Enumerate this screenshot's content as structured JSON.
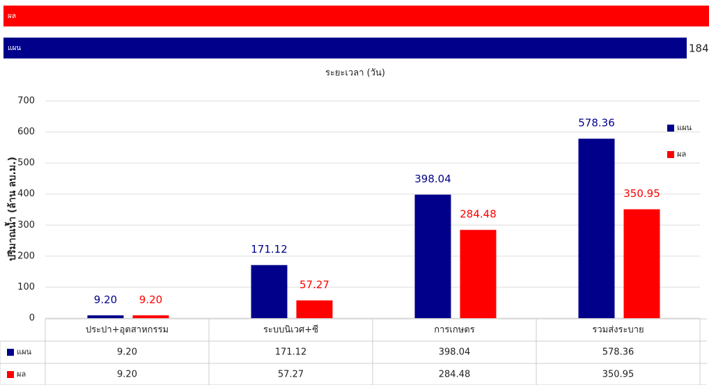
{
  "chart_data": [
    {
      "type": "hbar",
      "xlabel": "ระยะเวลา (วัน)",
      "categories": [
        "ผล",
        "แผน"
      ],
      "values": [
        195,
        184
      ],
      "colors": [
        "#ff0000",
        "#00008b"
      ],
      "xlim": [
        0,
        190
      ]
    },
    {
      "type": "bar",
      "ylabel": "ปริมาณน้ำ (ล้าน ลบ.ม.)",
      "categories": [
        "ประปา+อุตสาหกรรม",
        "ระบบนิเวศ+ซี",
        "การเกษตร",
        "รวมส่งระบาย"
      ],
      "series": [
        {
          "name": "แผน",
          "color": "#00008b",
          "values": [
            9.2,
            171.12,
            398.04,
            578.36
          ],
          "value_labels": [
            "9.20",
            "171.12",
            "398.04",
            "578.36"
          ]
        },
        {
          "name": "ผล",
          "color": "#ff0000",
          "values": [
            9.2,
            57.27,
            284.48,
            350.95
          ],
          "value_labels": [
            "9.20",
            "57.27",
            "284.48",
            "350.95"
          ]
        }
      ],
      "ylim": [
        0,
        700
      ],
      "yticks": [
        0,
        100,
        200,
        300,
        400,
        500,
        600,
        700
      ],
      "grid": true,
      "legend": "right"
    }
  ]
}
